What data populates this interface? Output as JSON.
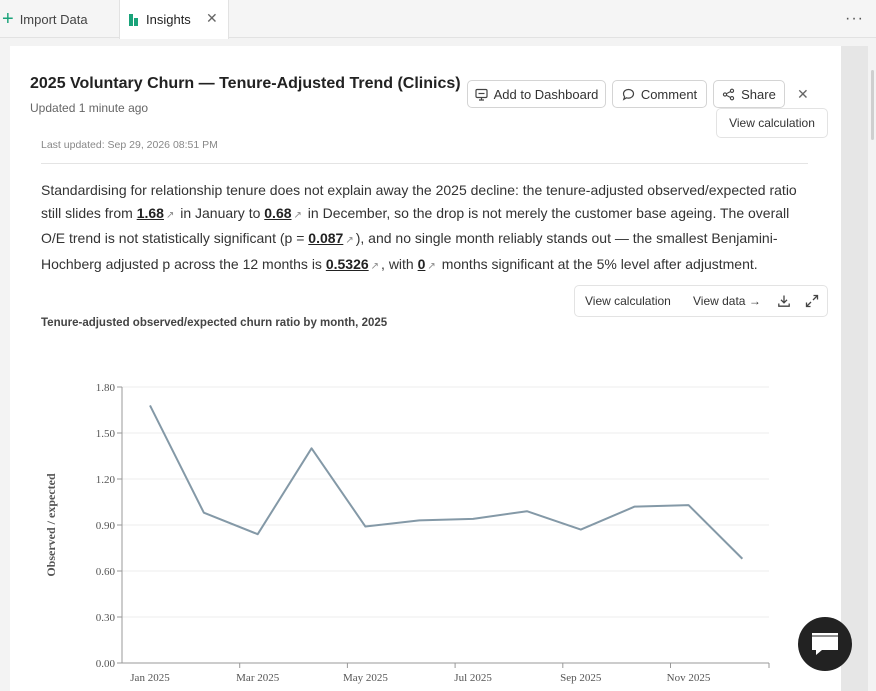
{
  "tabs": {
    "import_label": "Import Data",
    "insights_label": "Insights",
    "close_glyph": "✕",
    "menu_glyph": "···"
  },
  "header": {
    "title": "2025 Voluntary Churn — Tenure-Adjusted Trend (Clinics)",
    "updated": "Updated 1 minute ago",
    "add_dashboard": "Add to Dashboard",
    "comment": "Comment",
    "share": "Share",
    "close_glyph": "✕",
    "view_calculation": "View calculation"
  },
  "meta": {
    "last_updated": "Last updated: Sep 29, 2026 08:51 PM"
  },
  "narrative": {
    "s1": "Standardising for relationship tenure does not explain away the 2025 decline: the tenure-adjusted observed/expected ratio still slides from ",
    "v1": "1.68",
    "s2": " in January to ",
    "v2": "0.68",
    "s3": " in December, so the drop is not merely the customer base ageing. The overall O/E trend is not statistically significant (p = ",
    "v3": "0.087",
    "s4": "), and no single month reliably stands out — the smallest Benjamini-Hochberg adjusted p across the 12 months is ",
    "v4": "0.5326",
    "s5": ", with ",
    "v5": "0",
    "s6": " months significant at the 5% level after adjustment.",
    "link_glyph": "↗"
  },
  "chart_tools": {
    "view_calculation": "View calculation",
    "view_data": "View data →"
  },
  "chart_data": {
    "type": "line",
    "title": "Tenure-adjusted observed/expected churn ratio by month, 2025",
    "xlabel": "",
    "ylabel": "Observed / expected",
    "x": [
      "Jan 2025",
      "Feb 2025",
      "Mar 2025",
      "Apr 2025",
      "May 2025",
      "Jun 2025",
      "Jul 2025",
      "Aug 2025",
      "Sep 2025",
      "Oct 2025",
      "Nov 2025",
      "Dec 2025"
    ],
    "xtick_labels": [
      "Jan 2025",
      "Mar 2025",
      "May 2025",
      "Jul 2025",
      "Sep 2025",
      "Nov 2025"
    ],
    "series": [
      {
        "values": [
          1.68,
          0.98,
          0.84,
          1.4,
          0.89,
          0.93,
          0.94,
          0.99,
          0.87,
          1.02,
          1.03,
          0.68
        ]
      }
    ],
    "ylim": [
      0,
      1.8
    ],
    "yticks": [
      "0.00",
      "0.30",
      "0.60",
      "0.90",
      "1.20",
      "1.50",
      "1.80"
    ],
    "grid": true,
    "line_color": "#8499a7"
  }
}
